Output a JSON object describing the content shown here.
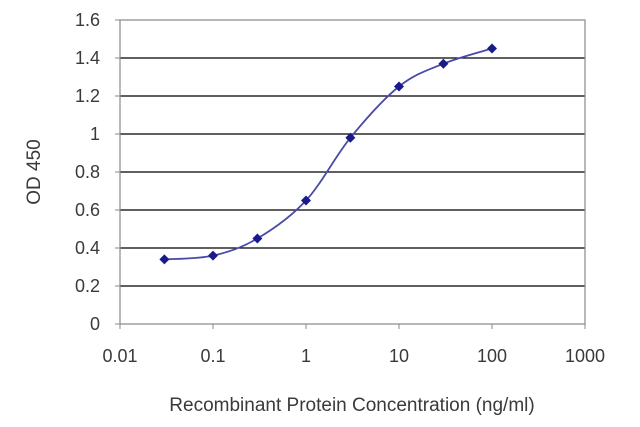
{
  "chart_data": {
    "type": "line",
    "title": "",
    "xlabel": "Recombinant Protein Concentration (ng/ml)",
    "ylabel": "OD 450",
    "xscale": "log",
    "xlim": [
      0.01,
      1000
    ],
    "ylim": [
      0,
      1.6
    ],
    "grid": "horizontal",
    "x_tick_labels": [
      "0.01",
      "0.1",
      "1",
      "10",
      "100",
      "1000"
    ],
    "x_tick_values": [
      0.01,
      0.1,
      1,
      10,
      100,
      1000
    ],
    "y_tick_labels": [
      "0",
      "0.2",
      "0.4",
      "0.6",
      "0.8",
      "1",
      "1.2",
      "1.4",
      "1.6"
    ],
    "y_tick_values": [
      0,
      0.2,
      0.4,
      0.6,
      0.8,
      1,
      1.2,
      1.4,
      1.6
    ],
    "series": [
      {
        "x": [
          0.03,
          0.1,
          0.3,
          1,
          3,
          10,
          30,
          100
        ],
        "y": [
          0.34,
          0.36,
          0.45,
          0.65,
          0.98,
          1.25,
          1.37,
          1.45
        ]
      }
    ],
    "colors": {
      "line": "#4a4aa8",
      "marker": "#1a1a8c",
      "grid": "#000000",
      "frame": "#888888",
      "text": "#3a3a3a"
    }
  }
}
